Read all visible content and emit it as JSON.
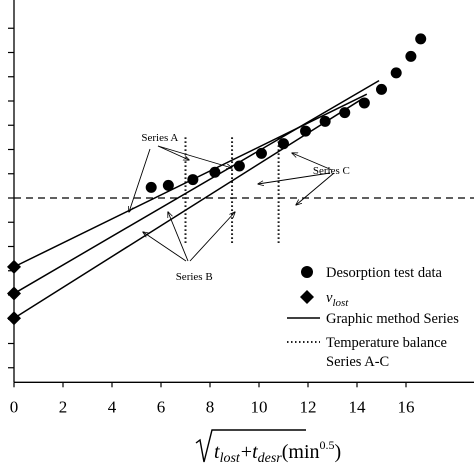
{
  "chart_data": {
    "type": "scatter",
    "title": "",
    "xlabel": {
      "prefix_var1": "t",
      "sub1": "lost",
      "plus": "+",
      "var2": "t",
      "sub2": "desr",
      "unit": "(min",
      "unit_exp": "0.5",
      "unit_close": ")"
    },
    "ylabel": "",
    "xlim": [
      0,
      17
    ],
    "ylim": [
      -3.8,
      3.8
    ],
    "x_ticks": [
      0,
      2,
      4,
      6,
      8,
      10,
      12,
      14,
      16
    ],
    "y_ticks": [
      -3.5,
      -3,
      -2.5,
      -2,
      -1.5,
      -1,
      -0.5,
      0,
      0.5,
      1,
      1.5,
      2,
      2.5,
      3,
      3.5
    ],
    "reference_line_y": 0,
    "series": [
      {
        "name": "Desorption test data",
        "marker": "circle",
        "points": [
          [
            5.6,
            0.22
          ],
          [
            6.3,
            0.26
          ],
          [
            7.3,
            0.38
          ],
          [
            8.2,
            0.53
          ],
          [
            9.2,
            0.66
          ],
          [
            10.1,
            0.92
          ],
          [
            11.0,
            1.12
          ],
          [
            11.9,
            1.38
          ],
          [
            12.7,
            1.58
          ],
          [
            13.5,
            1.76
          ],
          [
            14.3,
            1.96
          ],
          [
            15.0,
            2.24
          ],
          [
            15.6,
            2.58
          ],
          [
            16.2,
            2.92
          ],
          [
            16.6,
            3.28
          ]
        ]
      },
      {
        "name": "v_lost",
        "name_base": "v",
        "name_sub": "lost",
        "marker": "diamond",
        "points": [
          [
            0,
            -1.42
          ],
          [
            0,
            -1.97
          ],
          [
            0,
            -2.48
          ]
        ]
      }
    ],
    "fit_lines": [
      {
        "name": "Graphic method Series",
        "style": "solid",
        "points": [
          [
            0,
            -1.42
          ],
          [
            14.4,
            2.14
          ]
        ]
      },
      {
        "name": "Graphic method Series",
        "style": "solid",
        "points": [
          [
            0,
            -1.97
          ],
          [
            14.9,
            2.42
          ]
        ]
      },
      {
        "name": "Graphic method Series",
        "style": "solid",
        "points": [
          [
            0,
            -2.48
          ],
          [
            14.2,
            2.04
          ]
        ]
      }
    ],
    "balance_lines": [
      {
        "name": "Temperature balance Series A-C",
        "style": "dotted",
        "x": 7.0,
        "y_range": [
          -0.95,
          1.25
        ]
      },
      {
        "name": "Temperature balance Series A-C",
        "style": "dotted",
        "x": 8.9,
        "y_range": [
          -0.95,
          1.25
        ]
      },
      {
        "name": "Temperature balance Series A-C",
        "style": "dotted",
        "x": 10.8,
        "y_range": [
          -0.95,
          1.25
        ]
      }
    ],
    "annotations": [
      {
        "text": "Series A",
        "at": [
          5.2,
          1.18
        ]
      },
      {
        "text": "Series B",
        "at": [
          6.6,
          -1.69
        ]
      },
      {
        "text": "Series C",
        "at": [
          12.2,
          0.5
        ]
      }
    ],
    "legend": {
      "placement": "bottom-right",
      "entries": [
        {
          "marker": "circle",
          "label": "Desorption test data"
        },
        {
          "marker": "diamond",
          "label_base": "v",
          "label_sub": "lost"
        },
        {
          "marker": "solid-line",
          "label": "Graphic method Series"
        },
        {
          "marker": "dotted-line",
          "label_line1": "Temperature balance",
          "label_line2": "Series A-C"
        }
      ]
    }
  }
}
